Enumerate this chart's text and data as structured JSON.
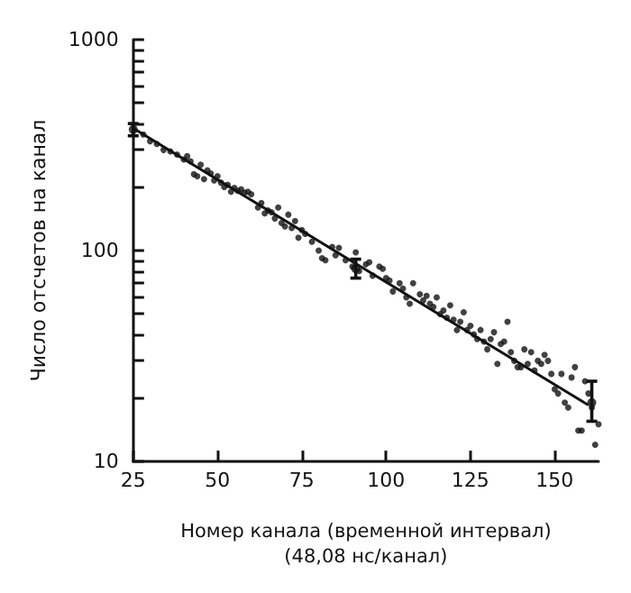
{
  "chart_data": {
    "type": "scatter",
    "xlabel": "Номер канала (временной интервал)\n(48,08 нс/канал)",
    "ylabel": "Число отсчетов на канал",
    "log": "y",
    "grid": false,
    "xlim": [
      25,
      163
    ],
    "xticks": [
      25,
      50,
      75,
      100,
      125,
      150
    ],
    "ylim": [
      10,
      1000
    ],
    "yticks": [
      10,
      {
        "value": 20,
        "label": null
      },
      {
        "value": 30,
        "label": null
      },
      {
        "value": 40,
        "label": null
      },
      {
        "value": 50,
        "label": null
      },
      {
        "value": 60,
        "label": null
      },
      {
        "value": 70,
        "label": null
      },
      {
        "value": 80,
        "label": null
      },
      {
        "value": 90,
        "label": null
      },
      100,
      {
        "value": 200,
        "label": null
      },
      {
        "value": 300,
        "label": null
      },
      {
        "value": 400,
        "label": null
      },
      {
        "value": 500,
        "label": null
      },
      {
        "value": 600,
        "label": null
      },
      {
        "value": 700,
        "label": null
      },
      {
        "value": 800,
        "label": null
      },
      {
        "value": 900,
        "label": null
      },
      1000
    ],
    "series": [
      {
        "color": "#111111",
        "marker": "circle",
        "x": [
          28,
          30,
          32,
          34,
          36,
          38,
          40,
          41,
          42,
          43,
          44,
          45,
          46,
          47,
          48,
          49,
          50,
          51,
          52,
          53,
          54,
          55,
          56,
          57,
          58,
          59,
          60,
          62,
          63,
          64,
          65,
          66,
          67,
          68,
          69,
          70,
          71,
          72,
          73,
          74,
          75,
          76,
          78,
          80,
          81,
          82,
          84,
          85,
          86,
          88,
          90,
          91,
          92,
          94,
          95,
          96,
          98,
          99,
          100,
          101,
          102,
          104,
          105,
          106,
          107,
          108,
          110,
          111,
          112,
          113,
          114,
          115,
          116,
          117,
          118,
          119,
          120,
          121,
          122,
          123,
          124,
          125,
          126,
          127,
          128,
          129,
          130,
          131,
          132,
          133,
          134,
          135,
          136,
          137,
          138,
          139,
          140,
          141,
          142,
          143,
          144,
          145,
          146,
          147,
          148,
          149,
          150,
          151,
          152,
          153,
          154,
          155,
          156,
          157,
          158,
          159,
          160,
          161,
          162,
          163
        ],
        "values": [
          355,
          330,
          320,
          300,
          295,
          285,
          270,
          280,
          265,
          230,
          225,
          255,
          218,
          240,
          232,
          215,
          225,
          210,
          200,
          205,
          190,
          198,
          192,
          195,
          188,
          190,
          185,
          160,
          168,
          150,
          155,
          152,
          142,
          160,
          135,
          130,
          148,
          128,
          138,
          115,
          125,
          120,
          110,
          100,
          92,
          90,
          104,
          95,
          103,
          90,
          84,
          98,
          80,
          86,
          88,
          76,
          84,
          82,
          74,
          72,
          64,
          70,
          66,
          60,
          56,
          70,
          62,
          58,
          61,
          56,
          54,
          60,
          50,
          52,
          48,
          55,
          47,
          42,
          46,
          51,
          42,
          44,
          40,
          38,
          42,
          37,
          34,
          38,
          41,
          29,
          36,
          37,
          46,
          33,
          30,
          28,
          28,
          34,
          29,
          33,
          27,
          30,
          29,
          32,
          30,
          26,
          22,
          21,
          26,
          19,
          18,
          25,
          28,
          14,
          14,
          24,
          21,
          18,
          12,
          15
        ]
      },
      {
        "type": "scatter",
        "color": "#111111",
        "marker": "circle",
        "x": [
          25,
          91,
          161
        ],
        "values": [
          375,
          82,
          19
        ],
        "errors": [
          [
            350,
            400
          ],
          [
            74,
            91
          ],
          [
            15.5,
            24
          ]
        ]
      },
      {
        "type": "line",
        "color": "#111111",
        "marker": "none",
        "line_style": "solid",
        "x": [
          25,
          160
        ],
        "values": [
          380,
          18.5
        ]
      }
    ]
  }
}
